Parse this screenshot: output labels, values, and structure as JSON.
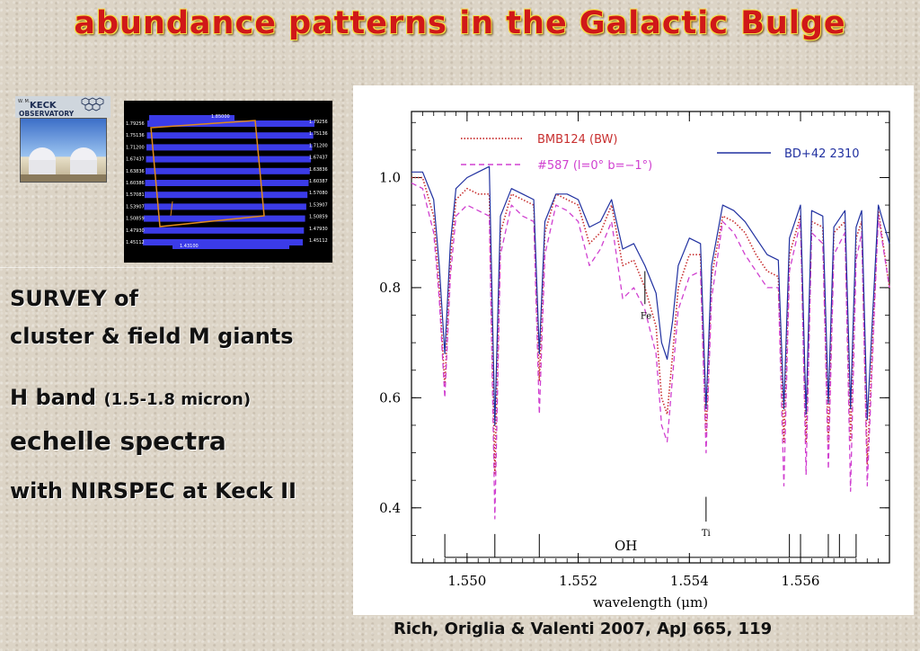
{
  "slide": {
    "title": "abundance patterns in the Galactic Bulge",
    "survey_line1": "SURVEY of",
    "survey_line2": "cluster & field M giants",
    "hband_main": "H band",
    "hband_range": "(1.5-1.8 micron)",
    "echelle": "echelle spectra",
    "instrument": "with NIRSPEC at Keck II",
    "citation": "Rich, Origlia & Valenti  2007, ApJ 665, 119"
  },
  "keck_logo": {
    "line1": "W. M.",
    "line2": "KECK",
    "line3": "OBSERVATORY"
  },
  "echelle_image": {
    "left_labels": [
      "1.79256",
      "1.75136",
      "1.71200",
      "1.67437",
      "1.63836",
      "1.60386",
      "1.57081",
      "1.53907",
      "1.50859",
      "1.47930",
      "1.45112"
    ],
    "right_labels": [
      "1.79256",
      "1.75136",
      "1.71200",
      "1.67437",
      "1.63836",
      "1.60387",
      "1.57080",
      "1.53907",
      "1.50859",
      "1.47930",
      "1.45112"
    ],
    "top_label": "1.85000",
    "bottom_label": "1.43100",
    "order_color": "#3b3be8",
    "box_color": "#e08a1a"
  },
  "chart_data": {
    "type": "line",
    "xlabel": "wavelength (μm)",
    "ylabel": "",
    "xlim": [
      1.549,
      1.5576
    ],
    "ylim": [
      0.3,
      1.12
    ],
    "xticks": [
      1.55,
      1.552,
      1.554,
      1.556
    ],
    "xtick_labels": [
      "1.550",
      "1.552",
      "1.554",
      "1.556"
    ],
    "yticks": [
      0.4,
      0.6,
      0.8,
      1.0
    ],
    "ytick_labels": [
      "0.4",
      "0.6",
      "0.8",
      "1.0"
    ],
    "legend": [
      {
        "name": "BMB124 (BW)",
        "color": "#c83030",
        "style": "dotted"
      },
      {
        "name": "#587 (l=0° b=−1°)",
        "color": "#d040d0",
        "style": "dashed"
      },
      {
        "name": "BD+42 2310",
        "color": "#2030a0",
        "style": "solid"
      }
    ],
    "x": [
      1.549,
      1.5492,
      1.5494,
      1.5495,
      1.5496,
      1.5497,
      1.5498,
      1.55,
      1.5502,
      1.5504,
      1.5505,
      1.5506,
      1.5508,
      1.551,
      1.5512,
      1.5513,
      1.5514,
      1.5516,
      1.5518,
      1.552,
      1.5522,
      1.5524,
      1.5526,
      1.5528,
      1.553,
      1.5532,
      1.5534,
      1.5535,
      1.5536,
      1.5537,
      1.5538,
      1.554,
      1.5542,
      1.5543,
      1.5544,
      1.5546,
      1.5548,
      1.555,
      1.5552,
      1.5554,
      1.5556,
      1.5557,
      1.5558,
      1.556,
      1.5561,
      1.5562,
      1.5564,
      1.5565,
      1.5566,
      1.5568,
      1.5569,
      1.557,
      1.5571,
      1.5572,
      1.5574,
      1.5576
    ],
    "series": [
      {
        "name": "BMB124 (BW)",
        "values": [
          1.0,
          1.0,
          0.93,
          0.8,
          0.62,
          0.85,
          0.96,
          0.98,
          0.97,
          0.97,
          0.46,
          0.9,
          0.97,
          0.96,
          0.95,
          0.63,
          0.9,
          0.97,
          0.96,
          0.95,
          0.88,
          0.9,
          0.95,
          0.84,
          0.85,
          0.8,
          0.73,
          0.6,
          0.57,
          0.68,
          0.8,
          0.86,
          0.86,
          0.53,
          0.82,
          0.93,
          0.92,
          0.9,
          0.86,
          0.83,
          0.82,
          0.52,
          0.86,
          0.93,
          0.52,
          0.92,
          0.91,
          0.52,
          0.9,
          0.92,
          0.52,
          0.89,
          0.92,
          0.48,
          0.94,
          0.8
        ]
      },
      {
        "name": "#587 (l=0° b=−1°)",
        "values": [
          0.99,
          0.98,
          0.9,
          0.78,
          0.6,
          0.82,
          0.93,
          0.95,
          0.94,
          0.93,
          0.38,
          0.86,
          0.95,
          0.93,
          0.92,
          0.57,
          0.86,
          0.95,
          0.94,
          0.92,
          0.84,
          0.87,
          0.92,
          0.78,
          0.8,
          0.76,
          0.68,
          0.55,
          0.52,
          0.64,
          0.76,
          0.82,
          0.83,
          0.5,
          0.78,
          0.92,
          0.9,
          0.86,
          0.83,
          0.8,
          0.8,
          0.44,
          0.83,
          0.92,
          0.46,
          0.9,
          0.88,
          0.47,
          0.86,
          0.9,
          0.43,
          0.85,
          0.9,
          0.44,
          0.93,
          0.8
        ]
      },
      {
        "name": "BD+42 2310",
        "values": [
          1.01,
          1.01,
          0.96,
          0.84,
          0.68,
          0.88,
          0.98,
          1.0,
          1.01,
          1.02,
          0.55,
          0.93,
          0.98,
          0.97,
          0.96,
          0.68,
          0.92,
          0.97,
          0.97,
          0.96,
          0.91,
          0.92,
          0.96,
          0.87,
          0.88,
          0.84,
          0.79,
          0.7,
          0.67,
          0.74,
          0.84,
          0.89,
          0.88,
          0.58,
          0.84,
          0.95,
          0.94,
          0.92,
          0.89,
          0.86,
          0.85,
          0.58,
          0.89,
          0.95,
          0.57,
          0.94,
          0.93,
          0.59,
          0.91,
          0.94,
          0.58,
          0.91,
          0.94,
          0.56,
          0.95,
          0.88
        ]
      }
    ],
    "annotations": [
      {
        "text": "Fe",
        "x": 1.5532,
        "y_line": [
          0.77,
          0.83
        ]
      },
      {
        "text": "Ti",
        "x": 1.5543,
        "y_line": [
          0.375,
          0.42
        ]
      }
    ],
    "oh_label": "OH",
    "oh_ticks": [
      1.5496,
      1.5505,
      1.5513,
      1.5558,
      1.556,
      1.5565,
      1.5567,
      1.557
    ]
  }
}
